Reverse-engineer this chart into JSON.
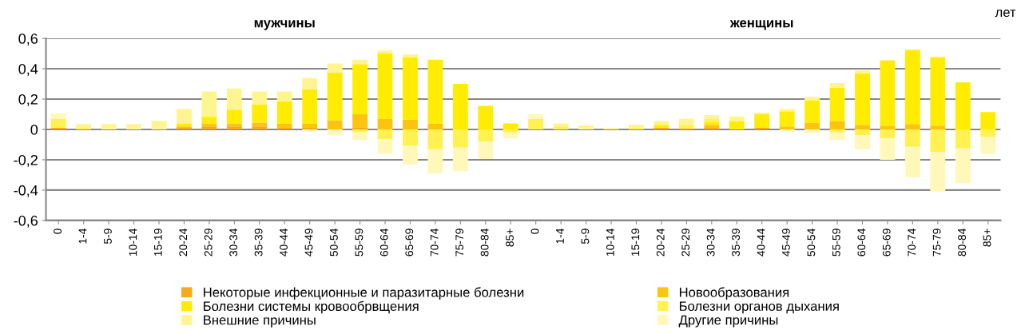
{
  "chart_data": {
    "type": "bar",
    "stacked": true,
    "categories": [
      "0",
      "1-4",
      "5-9",
      "10-14",
      "15-19",
      "20-24",
      "25-29",
      "30-34",
      "35-39",
      "40-44",
      "45-49",
      "50-54",
      "55-59",
      "60-64",
      "65-69",
      "70-74",
      "75-79",
      "80-84",
      "85+",
      "0",
      "1-4",
      "5-9",
      "10-14",
      "15-19",
      "20-24",
      "25-29",
      "30-34",
      "35-39",
      "40-44",
      "45-49",
      "50-54",
      "55-59",
      "60-64",
      "65-69",
      "70-74",
      "75-79",
      "80-84",
      "85+"
    ],
    "series": [
      {
        "name": "Некоторые инфекционные и паразитарные болезни",
        "color": "#f7a81b",
        "values": [
          0.01,
          0,
          0,
          0,
          0,
          0.01,
          0.02,
          0.02,
          0.02,
          0.015,
          0.01,
          0,
          0.015,
          0,
          0,
          0,
          0,
          0,
          0,
          0,
          0,
          0,
          0,
          0,
          0.01,
          0.005,
          0.01,
          0,
          0.01,
          0,
          0,
          0,
          0,
          0,
          0,
          0,
          0,
          0
        ]
      },
      {
        "name": "Новообразования",
        "color": "#fcc40f",
        "values": [
          0,
          0,
          0,
          0,
          0,
          0.01,
          0.02,
          0.02,
          0.025,
          0.025,
          0.03,
          0.06,
          0.085,
          0.07,
          0.065,
          0.04,
          0,
          0,
          0,
          0,
          0,
          0,
          0,
          0,
          0,
          0,
          0.02,
          0,
          0,
          0.02,
          0.045,
          0.055,
          0.03,
          0.025,
          0.035,
          0.025,
          0,
          0
        ]
      },
      {
        "name": "Болезни системы кровообрвщения",
        "color": "#ffec00",
        "values": [
          0,
          0,
          0,
          0,
          0,
          0.02,
          0.04,
          0.09,
          0.12,
          0.145,
          0.225,
          0.315,
          0.33,
          0.43,
          0.41,
          0.42,
          0.3,
          0.155,
          0.04,
          0,
          0,
          0,
          0,
          0,
          0.02,
          0,
          0.02,
          0.055,
          0.09,
          0.1,
          0.145,
          0.22,
          0.34,
          0.43,
          0.49,
          0.45,
          0.31,
          0.115
        ]
      },
      {
        "name": "Болезни органов дыхания",
        "color": "#fff250",
        "values": [
          0.06,
          0.015,
          0,
          0,
          0,
          0,
          0.01,
          0,
          0,
          0,
          0,
          0,
          -0.02,
          -0.065,
          -0.105,
          -0.13,
          -0.12,
          -0.08,
          -0.02,
          0.07,
          0.02,
          0,
          0,
          0.01,
          0,
          0.025,
          0.02,
          0,
          0,
          0,
          0,
          -0.02,
          -0.04,
          -0.06,
          -0.115,
          -0.15,
          -0.125,
          -0.05
        ]
      },
      {
        "name": "Внешние причины",
        "color": "#fff590",
        "values": [
          0,
          0.02,
          0.035,
          0.035,
          0.055,
          0.095,
          0.16,
          0.14,
          0.085,
          0.065,
          0.075,
          0.06,
          0.03,
          0.02,
          0.02,
          0,
          0,
          0,
          0,
          0,
          0.02,
          0.028,
          0.01,
          0.02,
          0.025,
          0.04,
          0.025,
          0.03,
          0.01,
          0.015,
          0.025,
          0.03,
          0.02,
          0,
          0,
          0.005,
          0,
          0
        ]
      },
      {
        "name": "Другие причины",
        "color": "#fff8b8",
        "values": [
          0.035,
          0,
          0,
          0,
          0,
          0,
          0,
          0,
          0,
          0,
          -0.015,
          -0.035,
          -0.05,
          -0.095,
          -0.125,
          -0.16,
          -0.155,
          -0.115,
          -0.04,
          0.03,
          0,
          0,
          0,
          0,
          0,
          0,
          0,
          0,
          0,
          -0.015,
          -0.025,
          -0.05,
          -0.09,
          -0.14,
          -0.2,
          -0.26,
          -0.23,
          -0.11
        ]
      }
    ],
    "ylim": [
      -0.6,
      0.6
    ],
    "yticks": [
      {
        "value": -0.6,
        "label": "-0,6"
      },
      {
        "value": -0.4,
        "label": "-0,4"
      },
      {
        "value": -0.2,
        "label": "-0,2"
      },
      0,
      {
        "value": 0.2,
        "label": "0,2"
      },
      {
        "value": 0.4,
        "label": "0,4"
      },
      {
        "value": 0.6,
        "label": "0,6"
      }
    ],
    "grid": "y",
    "legend": "bottom",
    "annotations": [
      "мужчины",
      "женщины",
      "лет"
    ]
  }
}
